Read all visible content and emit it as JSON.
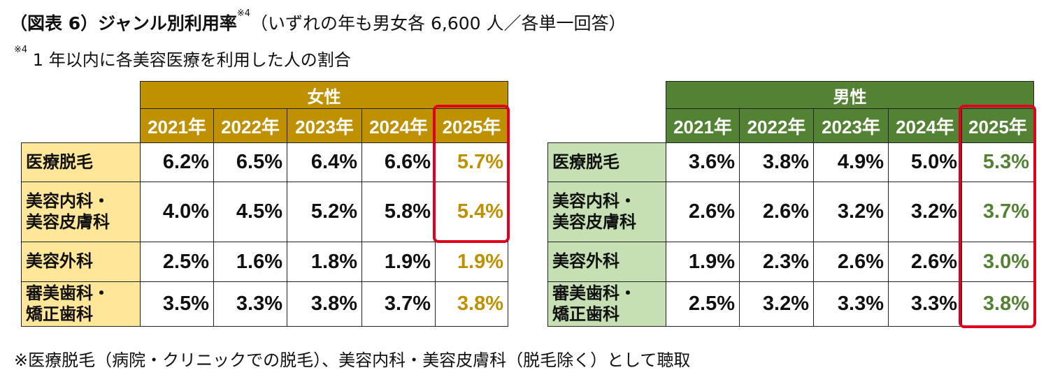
{
  "title": {
    "main": "（図表 6）ジャンル別利用率",
    "mark": "※4",
    "sub": "（いずれの年も男女各 6,600 人／各単一回答）"
  },
  "note": {
    "mark": "※4",
    "text": " 1 年以内に各美容医療を利用した人の割合"
  },
  "footnote": "※医療脱毛（病院・クリニックでの脱毛）、美容内科・美容皮膚科（脱毛除く）として聴取",
  "colors": {
    "women_header": "#BF9000",
    "women_label": "#FFE699",
    "men_header": "#548235",
    "men_label": "#C6E0B4",
    "highlight_box": "#E0001B"
  },
  "years": [
    "2021年",
    "2022年",
    "2023年",
    "2024年",
    "2025年"
  ],
  "categories": [
    "医療脱毛",
    "美容内科・\n美容皮膚科",
    "美容外科",
    "審美歯科・\n矯正歯科"
  ],
  "women": {
    "label": "女性",
    "rows": [
      [
        "6.2%",
        "6.5%",
        "6.4%",
        "6.6%",
        "5.7%"
      ],
      [
        "4.0%",
        "4.5%",
        "5.2%",
        "5.8%",
        "5.4%"
      ],
      [
        "2.5%",
        "1.6%",
        "1.8%",
        "1.9%",
        "1.9%"
      ],
      [
        "3.5%",
        "3.3%",
        "3.8%",
        "3.7%",
        "3.8%"
      ]
    ]
  },
  "men": {
    "label": "男性",
    "rows": [
      [
        "3.6%",
        "3.8%",
        "4.9%",
        "5.0%",
        "5.3%"
      ],
      [
        "2.6%",
        "2.6%",
        "3.2%",
        "3.2%",
        "3.7%"
      ],
      [
        "1.9%",
        "2.3%",
        "2.6%",
        "2.6%",
        "3.0%"
      ],
      [
        "2.5%",
        "3.2%",
        "3.3%",
        "3.3%",
        "3.8%"
      ]
    ]
  }
}
